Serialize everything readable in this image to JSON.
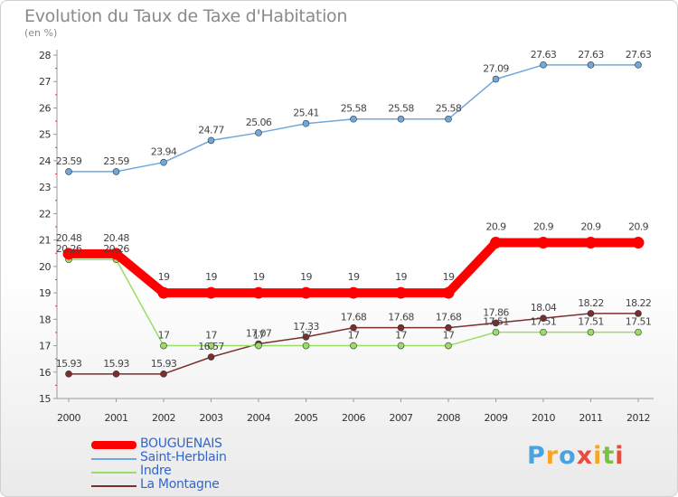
{
  "chart_data": {
    "type": "line",
    "title": "Evolution du Taux de Taxe d'Habitation",
    "subtitle": "(en %)",
    "categories": [
      "2000",
      "2001",
      "2002",
      "2003",
      "2004",
      "2005",
      "2006",
      "2007",
      "2008",
      "2009",
      "2010",
      "2011",
      "2012"
    ],
    "ylim": [
      15,
      28
    ],
    "yticks": [
      15,
      16,
      17,
      18,
      19,
      20,
      21,
      22,
      23,
      24,
      25,
      26,
      27,
      28
    ],
    "grid": false,
    "legend_position": "bottom-left",
    "series": [
      {
        "name": "BOUGUENAIS",
        "color": "#ff0000",
        "values": [
          20.48,
          20.48,
          19,
          19,
          19,
          19,
          19,
          19,
          19,
          20.9,
          20.9,
          20.9,
          20.9
        ],
        "labels": [
          "20.48",
          "20.48",
          "19",
          "19",
          "19",
          "19",
          "19",
          "19",
          "19",
          "20.9",
          "20.9",
          "20.9",
          "20.9"
        ]
      },
      {
        "name": "Saint-Herblain",
        "color": "#6fa8dc",
        "values": [
          23.59,
          23.59,
          23.94,
          24.77,
          25.06,
          25.41,
          25.58,
          25.58,
          25.58,
          27.09,
          27.63,
          27.63,
          27.63
        ],
        "labels": [
          "23.59",
          "23.59",
          "23.94",
          "24.77",
          "25.06",
          "25.41",
          "25.58",
          "25.58",
          "25.58",
          "27.09",
          "27.63",
          "27.63",
          "27.63"
        ]
      },
      {
        "name": "Indre",
        "color": "#99dd66",
        "values": [
          20.26,
          20.26,
          17,
          17,
          17,
          17,
          17,
          17,
          17,
          17.51,
          17.51,
          17.51,
          17.51
        ],
        "labels": [
          "20.26",
          "20.26",
          "17",
          "17",
          "17",
          "17",
          "17",
          "17",
          "17",
          "17.51",
          "17.51",
          "17.51",
          "17.51"
        ]
      },
      {
        "name": "La Montagne",
        "color": "#7b2e2e",
        "values": [
          15.93,
          15.93,
          15.93,
          16.57,
          17.07,
          17.33,
          17.68,
          17.68,
          17.68,
          17.86,
          18.04,
          18.22,
          18.22
        ],
        "labels": [
          "15.93",
          "15.93",
          "15.93",
          "16.57",
          "17.07",
          "17.33",
          "17.68",
          "17.68",
          "17.68",
          "17.86",
          "18.04",
          "18.22",
          "18.22"
        ]
      }
    ]
  },
  "logo": {
    "text": "Proxiti",
    "colors": [
      "#4aa3df",
      "#f5a623",
      "#4aa3df",
      "#e74c3c",
      "#f5a623",
      "#7ac143",
      "#e74c3c"
    ]
  }
}
